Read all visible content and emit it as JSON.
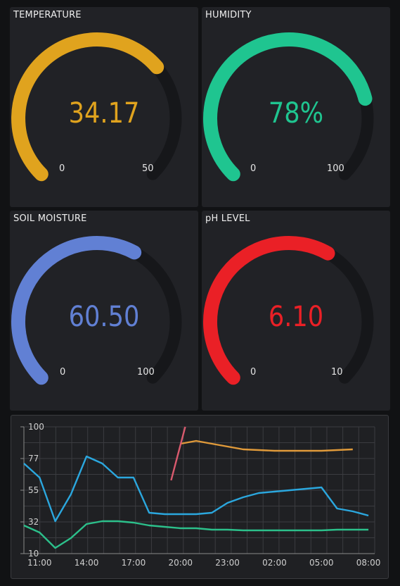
{
  "gauges": [
    {
      "id": "temperature",
      "title": "TEMPERATURE",
      "value": "34.17",
      "value_num": 34.17,
      "min": "0",
      "max": "50",
      "min_num": 0,
      "max_num": 50,
      "color": "#e0a31e"
    },
    {
      "id": "humidity",
      "title": "HUMIDITY",
      "value": "78%",
      "value_num": 78,
      "min": "0",
      "max": "100",
      "min_num": 0,
      "max_num": 100,
      "color": "#1fc590"
    },
    {
      "id": "soil",
      "title": "SOIL MOISTURE",
      "value": "60.50",
      "value_num": 60.5,
      "min": "0",
      "max": "100",
      "min_num": 0,
      "max_num": 100,
      "color": "#6180d4"
    },
    {
      "id": "ph",
      "title": "pH LEVEL",
      "value": "6.10",
      "value_num": 6.1,
      "min": "0",
      "max": "10",
      "min_num": 0,
      "max_num": 10,
      "color": "#ea2026"
    }
  ],
  "chart_data": {
    "type": "line",
    "x_ticks": [
      "11:00",
      "14:00",
      "17:00",
      "20:00",
      "23:00",
      "02:00",
      "05:00",
      "08:00"
    ],
    "y_ticks": [
      "100",
      "77",
      "55",
      "32",
      "10"
    ],
    "ylim": [
      10,
      100
    ],
    "grid": true,
    "series": [
      {
        "color": "#e09a3a",
        "points": [
          [
            20,
            88
          ],
          [
            21,
            90
          ],
          [
            22,
            88
          ],
          [
            23,
            86
          ],
          [
            24,
            84
          ],
          [
            25,
            83.5
          ],
          [
            26,
            83
          ],
          [
            27,
            83
          ],
          [
            28,
            83
          ],
          [
            29,
            83
          ],
          [
            30,
            83.5
          ],
          [
            31,
            84
          ]
        ]
      },
      {
        "color": "#d95a6e",
        "points": [
          [
            19.4,
            62
          ],
          [
            20.3,
            100
          ]
        ]
      },
      {
        "color": "#2ba7de",
        "points": [
          [
            10,
            74
          ],
          [
            11,
            64
          ],
          [
            12,
            33
          ],
          [
            13,
            52
          ],
          [
            14,
            79
          ],
          [
            15,
            74
          ],
          [
            16,
            64
          ],
          [
            17,
            64
          ],
          [
            18,
            39
          ],
          [
            19,
            38
          ],
          [
            20,
            38
          ],
          [
            21,
            38
          ],
          [
            22,
            39
          ],
          [
            23,
            46
          ],
          [
            24,
            50
          ],
          [
            25,
            53
          ],
          [
            26,
            54
          ],
          [
            27,
            55
          ],
          [
            28,
            56
          ],
          [
            29,
            57
          ],
          [
            30,
            42
          ],
          [
            31,
            40
          ],
          [
            32,
            37
          ]
        ]
      },
      {
        "color": "#2cc08b",
        "points": [
          [
            10,
            30
          ],
          [
            11,
            25
          ],
          [
            12,
            14
          ],
          [
            13,
            21
          ],
          [
            14,
            31
          ],
          [
            15,
            33
          ],
          [
            16,
            33
          ],
          [
            17,
            32
          ],
          [
            18,
            30
          ],
          [
            19,
            29
          ],
          [
            20,
            28
          ],
          [
            21,
            28
          ],
          [
            22,
            27
          ],
          [
            23,
            27
          ],
          [
            24,
            26.5
          ],
          [
            25,
            26.5
          ],
          [
            26,
            26.5
          ],
          [
            27,
            26.5
          ],
          [
            28,
            26.5
          ],
          [
            29,
            26.5
          ],
          [
            30,
            27
          ],
          [
            31,
            27
          ],
          [
            32,
            27
          ]
        ]
      }
    ]
  }
}
